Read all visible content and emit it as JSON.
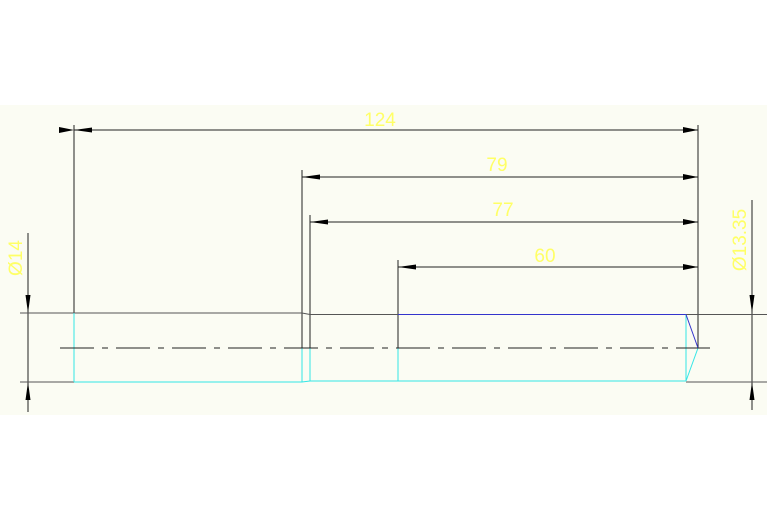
{
  "drawing": {
    "dimensions": {
      "overall_length": "124",
      "length_79": "79",
      "length_77": "77",
      "length_60": "60",
      "diameter_left": "Ø14",
      "diameter_right": "Ø13.35"
    },
    "colors": {
      "background_band": "#fbfcf3",
      "dimension_lines": "#111111",
      "dimension_text": "#ffff66",
      "outline_cyan": "#33e6e6",
      "outline_blue": "#3333cc",
      "outline_gray": "#555555",
      "centerline": "#222222"
    }
  }
}
